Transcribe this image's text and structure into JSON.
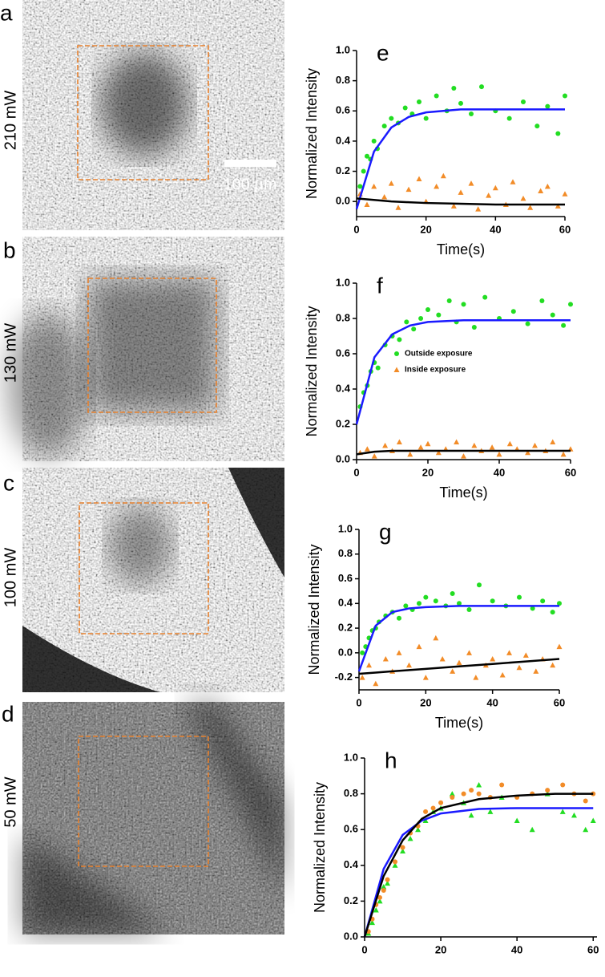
{
  "panels": [
    {
      "label": "a",
      "power": "210 mW"
    },
    {
      "label": "b",
      "power": "130 mW"
    },
    {
      "label": "c",
      "power": "100 mW"
    },
    {
      "label": "d",
      "power": "50 mW"
    }
  ],
  "scale_bar": "100 µm",
  "chart_data": [
    {
      "type": "scatter",
      "panel_label": "e",
      "ylabel": "Normalized Intensity",
      "xlabel": "Time(s)",
      "xlim": [
        0,
        60
      ],
      "ylim": [
        -0.1,
        1.0
      ],
      "xticks": [
        0,
        20,
        40,
        60
      ],
      "yticks": [
        {
          "value": 0,
          "label": "0.0"
        },
        0.2,
        0.4,
        0.6,
        0.8,
        {
          "value": 1,
          "label": "1.0"
        }
      ],
      "series": [
        {
          "color": "#22dd22",
          "marker": "circle",
          "x": [
            1,
            2,
            3,
            4,
            5,
            6,
            8,
            10,
            12,
            14,
            16,
            18,
            20,
            23,
            26,
            28,
            30,
            33,
            36,
            40,
            44,
            48,
            52,
            55,
            58,
            60
          ],
          "values": [
            0.1,
            0.2,
            0.3,
            0.28,
            0.4,
            0.35,
            0.5,
            0.55,
            0.52,
            0.62,
            0.58,
            0.66,
            0.55,
            0.7,
            0.6,
            0.75,
            0.65,
            0.58,
            0.76,
            0.6,
            0.55,
            0.66,
            0.5,
            0.63,
            0.45,
            0.7
          ]
        },
        {
          "color": "#f28c28",
          "marker": "triangle",
          "x": [
            1,
            3,
            5,
            8,
            10,
            12,
            15,
            18,
            20,
            23,
            25,
            28,
            30,
            33,
            35,
            38,
            40,
            43,
            45,
            48,
            50,
            53,
            55,
            58,
            60
          ],
          "values": [
            0.05,
            -0.02,
            0.1,
            0.03,
            0.12,
            -0.04,
            0.08,
            0.15,
            0.0,
            0.1,
            0.17,
            -0.03,
            0.06,
            0.12,
            -0.05,
            0.04,
            0.09,
            -0.02,
            0.13,
            0.02,
            -0.04,
            0.07,
            0.1,
            -0.03,
            0.05
          ]
        },
        {
          "color": "#1a1aff",
          "marker": "line",
          "x": [
            0,
            5,
            10,
            15,
            20,
            30,
            40,
            50,
            60
          ],
          "values": [
            -0.05,
            0.33,
            0.49,
            0.56,
            0.59,
            0.61,
            0.61,
            0.61,
            0.61
          ]
        },
        {
          "color": "#000000",
          "marker": "line",
          "x": [
            0,
            5,
            10,
            15,
            20,
            30,
            40,
            50,
            60
          ],
          "values": [
            0.02,
            0.01,
            0.0,
            -0.005,
            -0.01,
            -0.015,
            -0.02,
            -0.02,
            -0.02
          ]
        }
      ]
    },
    {
      "type": "scatter",
      "panel_label": "f",
      "ylabel": "Normalized Intensity",
      "xlabel": "Time(s)",
      "xlim": [
        0,
        60
      ],
      "ylim": [
        0,
        1.0
      ],
      "xticks": [
        0,
        20,
        40,
        60
      ],
      "yticks": [
        {
          "value": 0,
          "label": "0.0"
        },
        0.2,
        0.4,
        0.6,
        0.8,
        {
          "value": 1,
          "label": "1.0"
        }
      ],
      "series": [
        {
          "name": "Outside exposure",
          "color": "#22dd22",
          "marker": "circle",
          "x": [
            1,
            2,
            3,
            4,
            5,
            6,
            8,
            10,
            12,
            14,
            16,
            18,
            20,
            23,
            26,
            28,
            30,
            33,
            36,
            40,
            44,
            48,
            52,
            55,
            58,
            60
          ],
          "values": [
            0.3,
            0.38,
            0.42,
            0.5,
            0.55,
            0.52,
            0.65,
            0.7,
            0.68,
            0.78,
            0.74,
            0.8,
            0.85,
            0.82,
            0.9,
            0.78,
            0.88,
            0.75,
            0.92,
            0.8,
            0.84,
            0.77,
            0.9,
            0.82,
            0.76,
            0.88
          ]
        },
        {
          "name": "Inside exposure",
          "color": "#f28c28",
          "marker": "triangle",
          "x": [
            1,
            3,
            5,
            8,
            10,
            12,
            15,
            18,
            20,
            23,
            25,
            28,
            30,
            33,
            35,
            38,
            40,
            43,
            45,
            48,
            50,
            53,
            55,
            58,
            60
          ],
          "values": [
            0.04,
            0.06,
            0.02,
            0.08,
            0.05,
            0.1,
            0.03,
            0.07,
            0.09,
            0.04,
            0.06,
            0.1,
            0.02,
            0.08,
            0.05,
            0.07,
            0.03,
            0.09,
            0.06,
            0.04,
            0.08,
            0.05,
            0.1,
            0.03,
            0.06
          ]
        },
        {
          "color": "#1a1aff",
          "marker": "line",
          "x": [
            0,
            5,
            10,
            15,
            20,
            30,
            40,
            50,
            60
          ],
          "values": [
            0.2,
            0.58,
            0.71,
            0.76,
            0.78,
            0.79,
            0.79,
            0.79,
            0.79
          ]
        },
        {
          "color": "#000000",
          "marker": "line",
          "x": [
            0,
            5,
            10,
            15,
            20,
            30,
            40,
            50,
            60
          ],
          "values": [
            0.03,
            0.045,
            0.05,
            0.05,
            0.05,
            0.05,
            0.05,
            0.05,
            0.05
          ]
        }
      ]
    },
    {
      "type": "scatter",
      "panel_label": "g",
      "ylabel": "Normalized Intensity",
      "xlabel": "Time(s)",
      "xlim": [
        0,
        60
      ],
      "ylim": [
        -0.3,
        1.0
      ],
      "xticks": [
        0,
        20,
        40,
        60
      ],
      "yticks": [
        -0.2,
        {
          "value": 0,
          "label": "0.0"
        },
        0.2,
        0.4,
        0.6,
        0.8,
        {
          "value": 1,
          "label": "1.0"
        }
      ],
      "series": [
        {
          "color": "#22dd22",
          "marker": "circle",
          "x": [
            1,
            2,
            3,
            4,
            5,
            6,
            8,
            10,
            12,
            14,
            16,
            18,
            20,
            23,
            26,
            28,
            30,
            33,
            36,
            40,
            44,
            48,
            52,
            55,
            58,
            60
          ],
          "values": [
            0.0,
            0.05,
            0.12,
            0.18,
            0.2,
            0.25,
            0.3,
            0.33,
            0.28,
            0.38,
            0.35,
            0.4,
            0.45,
            0.42,
            0.38,
            0.48,
            0.4,
            0.35,
            0.55,
            0.42,
            0.38,
            0.45,
            0.36,
            0.42,
            0.33,
            0.4
          ]
        },
        {
          "color": "#f28c28",
          "marker": "triangle",
          "x": [
            1,
            3,
            5,
            8,
            10,
            12,
            15,
            18,
            20,
            23,
            25,
            28,
            30,
            33,
            35,
            38,
            40,
            43,
            45,
            48,
            50,
            53,
            55,
            58,
            60
          ],
          "values": [
            -0.2,
            -0.1,
            -0.25,
            -0.05,
            -0.15,
            0.0,
            -0.1,
            0.05,
            -0.2,
            0.12,
            -0.05,
            -0.15,
            -0.08,
            0.0,
            -0.2,
            -0.1,
            -0.05,
            -0.18,
            0.0,
            -0.12,
            -0.02,
            -0.15,
            -0.05,
            -0.1,
            0.05
          ]
        },
        {
          "color": "#1a1aff",
          "marker": "line",
          "x": [
            0,
            5,
            10,
            15,
            20,
            30,
            40,
            50,
            60
          ],
          "values": [
            -0.15,
            0.22,
            0.33,
            0.36,
            0.37,
            0.38,
            0.38,
            0.38,
            0.38
          ]
        },
        {
          "color": "#000000",
          "marker": "line",
          "x": [
            0,
            5,
            10,
            15,
            20,
            30,
            40,
            50,
            60
          ],
          "values": [
            -0.17,
            -0.16,
            -0.15,
            -0.14,
            -0.13,
            -0.11,
            -0.09,
            -0.07,
            -0.05
          ]
        }
      ]
    },
    {
      "type": "scatter",
      "panel_label": "h",
      "ylabel": "Normalized Intensity",
      "xlim": [
        0,
        61
      ],
      "ylim": [
        0,
        1.0
      ],
      "xticks": [
        0,
        20,
        40,
        60
      ],
      "yticks": [
        {
          "value": 0,
          "label": "0.0"
        },
        0.2,
        0.4,
        0.6,
        0.8,
        {
          "value": 1,
          "label": "1.0"
        }
      ],
      "series": [
        {
          "color": "#22dd22",
          "marker": "triangle",
          "x": [
            1,
            2,
            3,
            4,
            5,
            6,
            8,
            10,
            12,
            14,
            16,
            18,
            20,
            23,
            26,
            28,
            30,
            33,
            36,
            40,
            44,
            48,
            52,
            55,
            58,
            60
          ],
          "values": [
            0.02,
            0.08,
            0.15,
            0.2,
            0.28,
            0.3,
            0.4,
            0.48,
            0.55,
            0.6,
            0.65,
            0.7,
            0.72,
            0.8,
            0.75,
            0.68,
            0.85,
            0.7,
            0.78,
            0.65,
            0.6,
            0.8,
            0.7,
            0.68,
            0.6,
            0.65
          ]
        },
        {
          "color": "#f28c28",
          "marker": "circle",
          "x": [
            1,
            2,
            3,
            4,
            5,
            6,
            8,
            10,
            12,
            14,
            16,
            18,
            20,
            23,
            26,
            28,
            30,
            33,
            36,
            40,
            44,
            48,
            52,
            55,
            58,
            60
          ],
          "values": [
            0.03,
            0.1,
            0.18,
            0.22,
            0.26,
            0.32,
            0.42,
            0.5,
            0.58,
            0.62,
            0.7,
            0.72,
            0.75,
            0.78,
            0.8,
            0.82,
            0.8,
            0.78,
            0.85,
            0.78,
            0.8,
            0.82,
            0.85,
            0.8,
            0.76,
            0.8
          ]
        },
        {
          "color": "#1a1aff",
          "marker": "line",
          "x": [
            0,
            5,
            10,
            15,
            20,
            30,
            40,
            50,
            60
          ],
          "values": [
            0,
            0.38,
            0.57,
            0.65,
            0.69,
            0.715,
            0.72,
            0.72,
            0.72
          ]
        },
        {
          "color": "#000000",
          "marker": "line",
          "x": [
            0,
            5,
            10,
            15,
            20,
            30,
            40,
            50,
            60
          ],
          "values": [
            0,
            0.34,
            0.54,
            0.66,
            0.72,
            0.77,
            0.79,
            0.8,
            0.8
          ]
        }
      ]
    }
  ]
}
